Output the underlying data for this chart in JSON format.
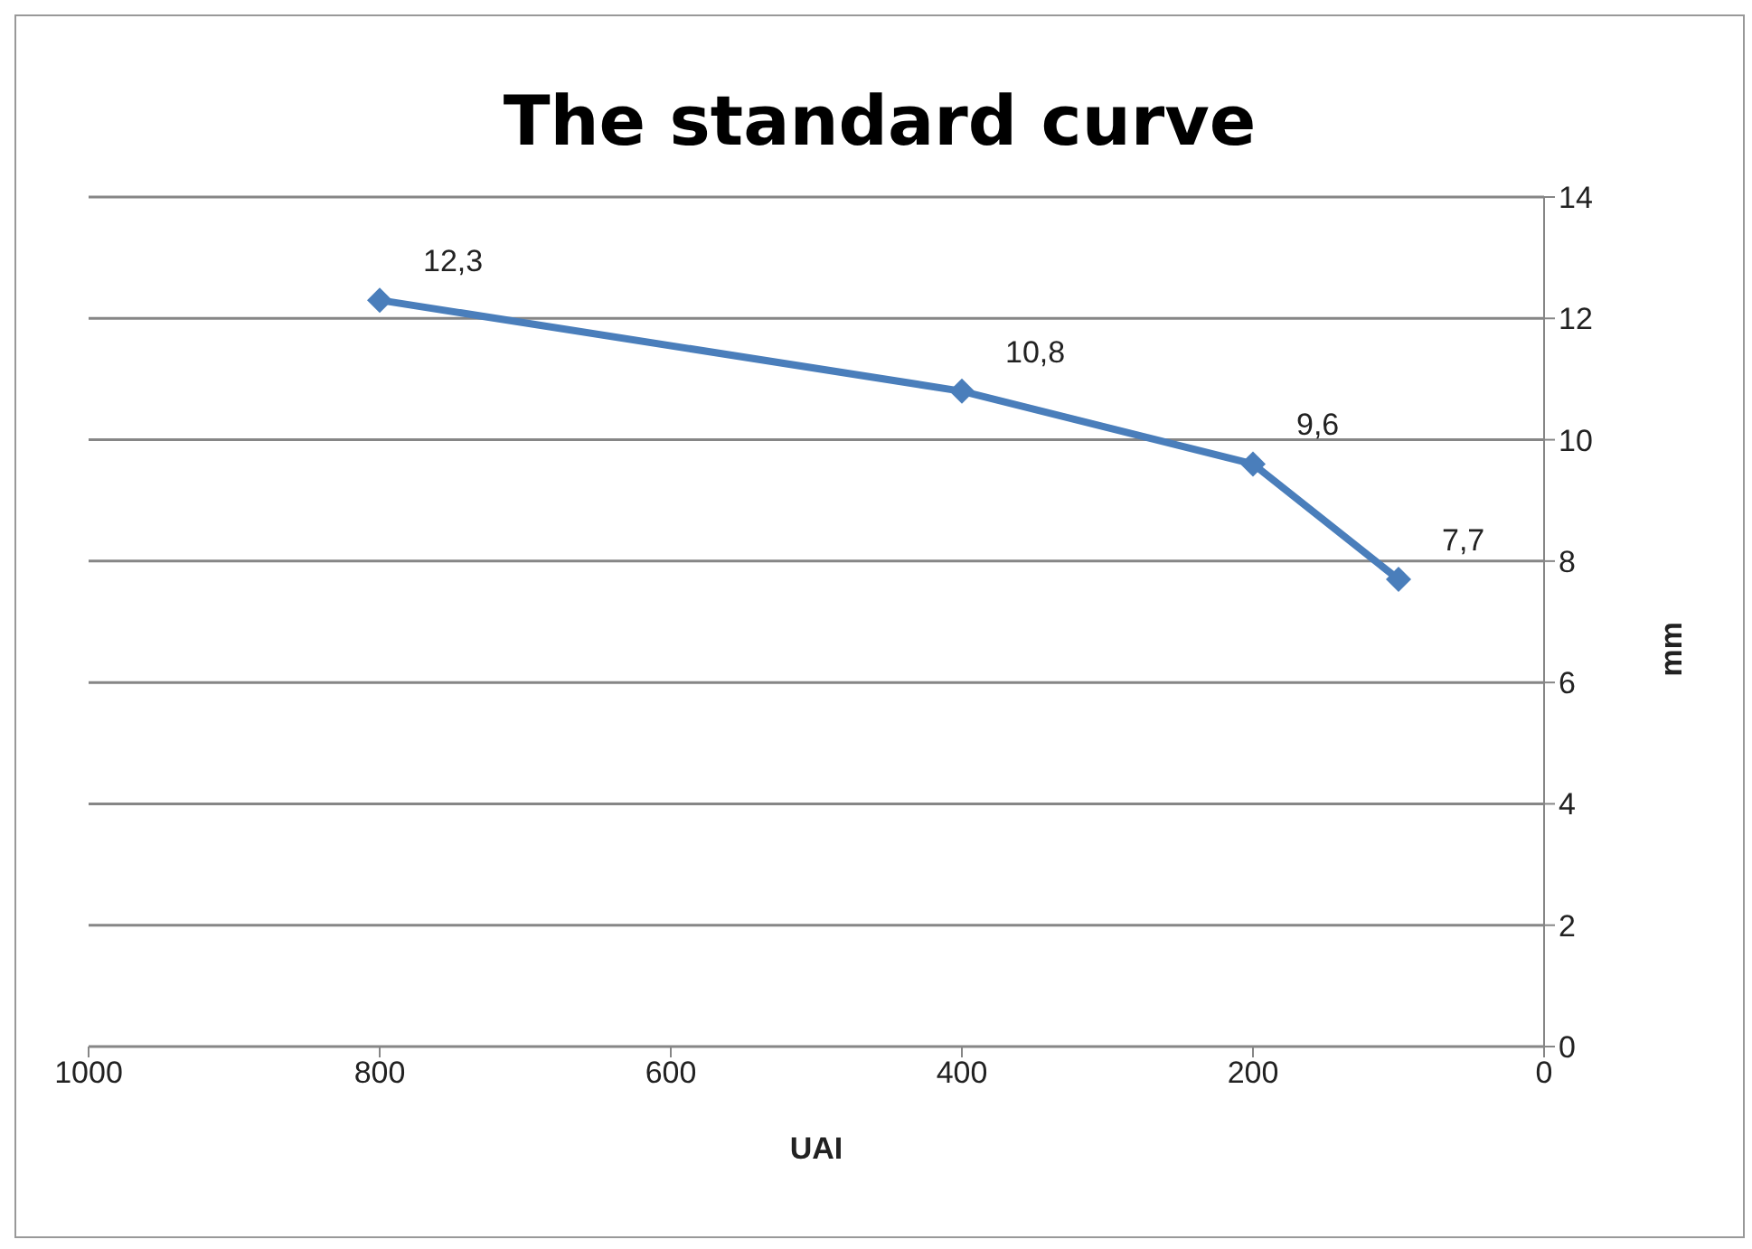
{
  "chart_data": {
    "type": "line",
    "title": "The standard curve",
    "xlabel": "UAI",
    "ylabel": "mm",
    "x": [
      800,
      400,
      200,
      100
    ],
    "series": [
      {
        "color": "#4a7ebb",
        "values": [
          12.3,
          10.8,
          9.6,
          7.7
        ],
        "value_labels": [
          "12,3",
          "10,8",
          "9,6",
          "7,7"
        ]
      }
    ],
    "xlim": [
      1000,
      0
    ],
    "xticks": [
      1000,
      800,
      600,
      400,
      200,
      0
    ],
    "ylim": [
      0,
      14
    ],
    "yticks": [
      0,
      2,
      4,
      6,
      8,
      10,
      12,
      14
    ],
    "grid": "y",
    "legend": false,
    "marker": "diamond",
    "line_style": "solid"
  }
}
